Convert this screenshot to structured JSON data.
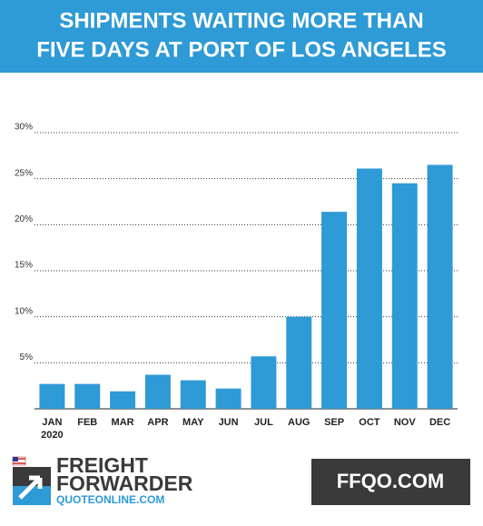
{
  "chart_data": {
    "type": "bar",
    "title": [
      "SHIPMENTS WAITING MORE THAN",
      "FIVE DAYS AT PORT OF LOS ANGELES"
    ],
    "categories": [
      "JAN",
      "FEB",
      "MAR",
      "APR",
      "MAY",
      "JUN",
      "JUL",
      "AUG",
      "SEP",
      "OCT",
      "NOV",
      "DEC"
    ],
    "year_label": "2020",
    "values": [
      2.7,
      2.7,
      1.9,
      3.7,
      3.1,
      2.2,
      5.7,
      10.0,
      21.4,
      26.1,
      24.5,
      26.5
    ],
    "color": "#2e9ad6",
    "ylim": [
      0,
      30
    ],
    "yticks": [
      {
        "value": 5,
        "label": "5%"
      },
      {
        "value": 10,
        "label": "10%"
      },
      {
        "value": 15,
        "label": "15%"
      },
      {
        "value": 20,
        "label": "20%"
      },
      {
        "value": 25,
        "label": "25%"
      },
      {
        "value": 30,
        "label": "30%"
      }
    ],
    "grid": true
  },
  "footer": {
    "brand_lines": [
      "FREIGHT",
      "FORWARDER"
    ],
    "brand_url": "QUOTEONLINE.COM",
    "site": "FFQO.COM"
  }
}
